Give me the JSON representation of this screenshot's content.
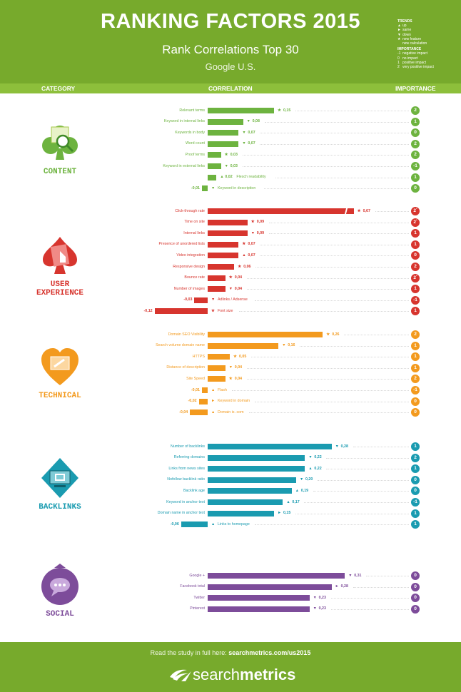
{
  "header": {
    "title": "RANKING FACTORS 2015",
    "subtitle": "Rank Correlations Top 30",
    "region": "Google U.S."
  },
  "legend": {
    "trends_title": "TRENDS",
    "trends": [
      {
        "icon": "up-triangle-icon",
        "symbol": "▲",
        "label": "up"
      },
      {
        "icon": "right-triangle-icon",
        "symbol": "►",
        "label": "same"
      },
      {
        "icon": "down-triangle-icon",
        "symbol": "▼",
        "label": "down"
      },
      {
        "icon": "star-icon",
        "symbol": "★",
        "label": "new feature"
      },
      {
        "icon": "",
        "symbol": "",
        "label": "new calculation"
      }
    ],
    "importance_title": "IMPORTANCE",
    "importance": [
      {
        "level": "-1",
        "label": "negative impact"
      },
      {
        "level": "0",
        "label": "no impact"
      },
      {
        "level": "1",
        "label": "positive impact"
      },
      {
        "level": "2",
        "label": "very positive impact"
      }
    ]
  },
  "columns": {
    "category": "CATEGORY",
    "correlation": "CORRELATION",
    "importance": "IMPORTANCE"
  },
  "colors": {
    "header": "#77aa2c",
    "band": "#8dbf3b",
    "content": "#6db33f",
    "user_experience": "#d7352e",
    "technical": "#f39a1e",
    "backlinks": "#1a9bb0",
    "social": "#7d4c9a"
  },
  "chart_data": {
    "type": "bar",
    "orientation": "horizontal",
    "xlabel": "CORRELATION",
    "axis_break_above": 0.33,
    "trend_symbols": {
      "up": "▲",
      "same": "►",
      "down": "▼",
      "new": "★"
    },
    "categories": [
      {
        "name": "CONTENT",
        "color": "#6db33f",
        "icon": "club-magnifier-icon",
        "factors": [
          {
            "label": "Relevant terms",
            "value": 0.15,
            "display": "0,15",
            "trend": "new",
            "importance": "2"
          },
          {
            "label": "Keyword in internal links",
            "value": 0.08,
            "display": "0,08",
            "trend": "down",
            "importance": "1"
          },
          {
            "label": "Keywords in body",
            "value": 0.07,
            "display": "0,07",
            "trend": "down",
            "importance": "0"
          },
          {
            "label": "Word count",
            "value": 0.07,
            "display": "0,07",
            "trend": "down",
            "importance": "2"
          },
          {
            "label": "Proof terms",
            "value": 0.03,
            "display": "0,03",
            "trend": "new",
            "importance": "2"
          },
          {
            "label": "Keyword in external links",
            "value": 0.03,
            "display": "0,03",
            "trend": "down",
            "importance": "-1"
          },
          {
            "label": "Flesch readability",
            "value": 0.02,
            "display": "0,02",
            "trend": "up",
            "importance": "1"
          },
          {
            "label": "Keyword in description",
            "value": -0.01,
            "display": "-0,01",
            "trend": "down",
            "importance": "0"
          }
        ]
      },
      {
        "name": "USER EXPERIENCE",
        "color": "#d7352e",
        "icon": "spade-touch-icon",
        "factors": [
          {
            "label": "Click-through rate",
            "value": 0.67,
            "display": "0,67",
            "trend": "new",
            "importance": "2",
            "importance_mark": "*"
          },
          {
            "label": "Time on site",
            "value": 0.09,
            "display": "0,09",
            "trend": "new",
            "importance": "2",
            "importance_mark": "*"
          },
          {
            "label": "Internal links",
            "value": 0.09,
            "display": "0,09",
            "trend": "down",
            "importance": "1"
          },
          {
            "label": "Presence of unordered lists",
            "value": 0.07,
            "display": "0,07",
            "trend": "new",
            "importance": "1"
          },
          {
            "label": "Video integration",
            "value": 0.07,
            "display": "0,07",
            "trend": "up",
            "importance": "0"
          },
          {
            "label": "Responsive design",
            "value": 0.06,
            "display": "0,06",
            "trend": "new",
            "importance": "2"
          },
          {
            "label": "Bounce rate",
            "value": 0.04,
            "display": "0,04",
            "trend": "new",
            "importance": "2",
            "importance_mark": "*"
          },
          {
            "label": "Number of images",
            "value": 0.04,
            "display": "0,04",
            "trend": "down",
            "importance": "1"
          },
          {
            "label": "Adlinks / Adsense",
            "value": -0.03,
            "display": "-0,03",
            "trend": "down",
            "importance": "-1"
          },
          {
            "label": "Font size",
            "value": -0.12,
            "display": "-0,12",
            "trend": "new",
            "importance": "1"
          }
        ]
      },
      {
        "name": "TECHNICAL",
        "color": "#f39a1e",
        "icon": "heart-monitor-icon",
        "factors": [
          {
            "label": "Domain SEO Visibility",
            "value": 0.26,
            "display": "0,26",
            "trend": "new",
            "importance": "2"
          },
          {
            "label": "Search volume domain name",
            "value": 0.16,
            "display": "0,16",
            "trend": "down",
            "importance": "1"
          },
          {
            "label": "HTTPS",
            "value": 0.05,
            "display": "0,05",
            "trend": "new",
            "importance": "1"
          },
          {
            "label": "Distance of description",
            "value": 0.04,
            "display": "0,04",
            "trend": "down",
            "importance": "1"
          },
          {
            "label": "Site Speed",
            "value": 0.04,
            "display": "0,04",
            "trend": "new",
            "importance": "2"
          },
          {
            "label": "Flash",
            "value": -0.01,
            "display": "-0,01",
            "trend": "up",
            "importance": "-1"
          },
          {
            "label": "Keyword in domain",
            "value": -0.02,
            "display": "-0,02",
            "trend": "same",
            "importance": "0"
          },
          {
            "label": "Domain is .com",
            "value": -0.04,
            "display": "-0,04",
            "trend": "up",
            "importance": "0"
          }
        ]
      },
      {
        "name": "BACKLINKS",
        "color": "#1a9bb0",
        "icon": "diamond-link-icon",
        "factors": [
          {
            "label": "Number of backlinks",
            "value": 0.28,
            "display": "0,28",
            "trend": "down",
            "importance": "1"
          },
          {
            "label": "Referring domains",
            "value": 0.22,
            "display": "0,22",
            "trend": "down",
            "importance": "2"
          },
          {
            "label": "Links from news sites",
            "value": 0.22,
            "display": "0,22",
            "trend": "up",
            "importance": "1"
          },
          {
            "label": "Nofollow backlink ratio",
            "value": 0.2,
            "display": "0,20",
            "trend": "down",
            "importance": "0"
          },
          {
            "label": "Backlink age",
            "value": 0.19,
            "display": "0,19",
            "trend": "up",
            "importance": "0"
          },
          {
            "label": "Keyword in anchor text",
            "value": 0.17,
            "display": "0,17",
            "trend": "up",
            "importance": "-1"
          },
          {
            "label": "Domain name in anchor text",
            "value": 0.15,
            "display": "0,15",
            "trend": "same",
            "importance": "1"
          },
          {
            "label": "Links to homepage",
            "value": -0.06,
            "display": "-0,06",
            "trend": "up",
            "importance": "1"
          }
        ]
      },
      {
        "name": "SOCIAL",
        "color": "#7d4c9a",
        "icon": "chat-bubble-icon",
        "factors": [
          {
            "label": "Google +",
            "value": 0.31,
            "display": "0,31",
            "trend": "down",
            "importance": "0"
          },
          {
            "label": "Facebook total",
            "value": 0.28,
            "display": "0,28",
            "trend": "same",
            "importance": "0"
          },
          {
            "label": "Twitter",
            "value": 0.23,
            "display": "0,23",
            "trend": "down",
            "importance": "0"
          },
          {
            "label": "Pinterest",
            "value": 0.23,
            "display": "0,23",
            "trend": "down",
            "importance": "0"
          }
        ]
      }
    ]
  },
  "footer": {
    "read_text": "Read the study in full here:",
    "link": "searchmetrics.com/us2015",
    "logo_light": "search",
    "logo_bold": "metrics"
  }
}
